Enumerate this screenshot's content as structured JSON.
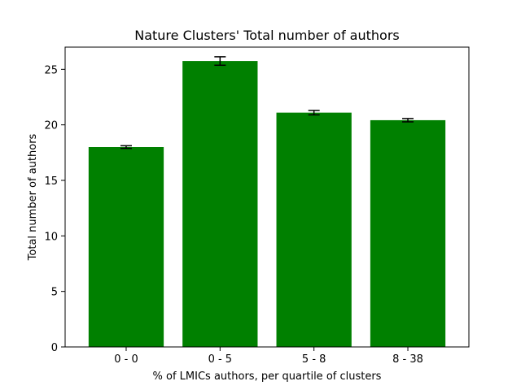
{
  "chart_data": {
    "type": "bar",
    "title": "Nature Clusters' Total number of authors",
    "xlabel": "% of LMICs authors, per quartile of clusters",
    "ylabel": "Total number of authors",
    "categories": [
      "0 - 0",
      "0 - 5",
      "5 - 8",
      "8 - 38"
    ],
    "values": [
      18.0,
      25.75,
      21.1,
      20.42
    ],
    "errors": [
      0.12,
      0.38,
      0.2,
      0.15
    ],
    "ylim": [
      0,
      27
    ],
    "yticks": [
      0,
      5,
      10,
      15,
      20,
      25
    ],
    "grid": false,
    "bar_color": "#008000",
    "error_color": "#000000"
  }
}
